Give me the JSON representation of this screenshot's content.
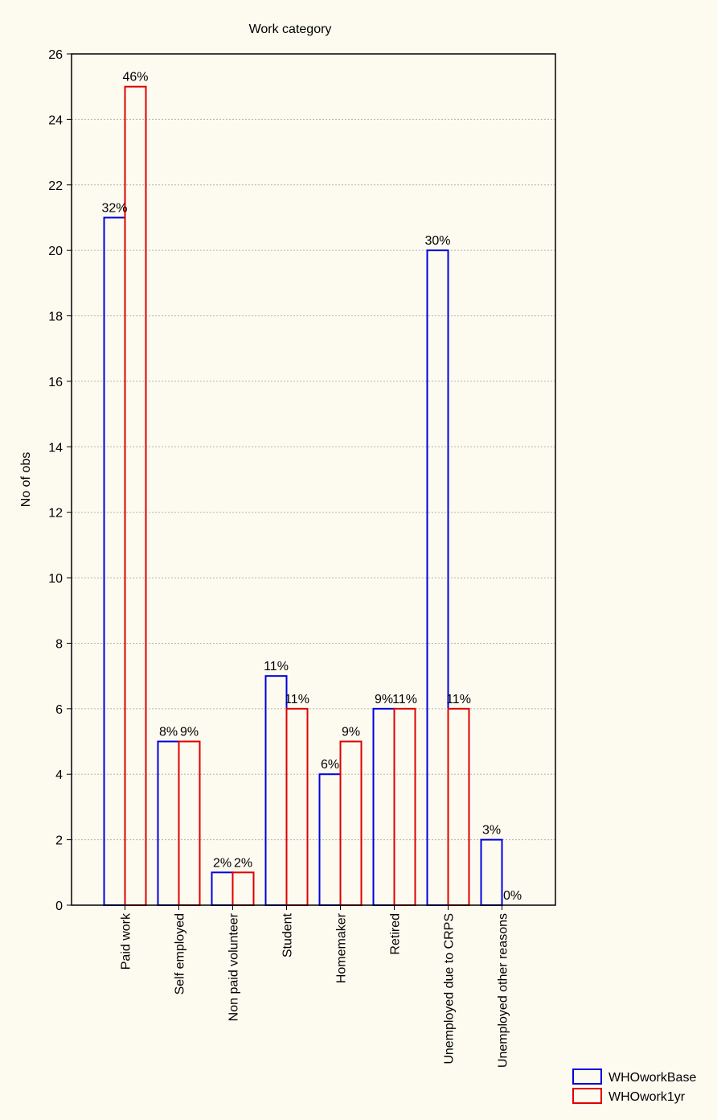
{
  "chart_data": {
    "type": "bar",
    "title": "Work category",
    "xlabel": "",
    "ylabel": "No of obs",
    "ylim": [
      0,
      26
    ],
    "yticks": [
      0,
      2,
      4,
      6,
      8,
      10,
      12,
      14,
      16,
      18,
      20,
      22,
      24,
      26
    ],
    "grid": true,
    "legend_position": "bottom-right",
    "categories": [
      "Paid work",
      "Self employed",
      "Non paid volunteer",
      "Student",
      "Homemaker",
      "Retired",
      "Unemployed due to CRPS",
      "Unemployed other reasons"
    ],
    "series": [
      {
        "name": "WHOworkBase",
        "color": "#0000e0",
        "values": [
          21,
          5,
          1,
          7,
          4,
          6,
          20,
          2
        ],
        "labels": [
          "32%",
          "8%",
          "2%",
          "11%",
          "6%",
          "9%",
          "30%",
          "3%"
        ]
      },
      {
        "name": "WHOwork1yr",
        "color": "#e00000",
        "values": [
          25,
          5,
          1,
          6,
          5,
          6,
          6,
          0
        ],
        "labels": [
          "46%",
          "9%",
          "2%",
          "11%",
          "9%",
          "11%",
          "11%",
          "0%"
        ]
      }
    ]
  }
}
